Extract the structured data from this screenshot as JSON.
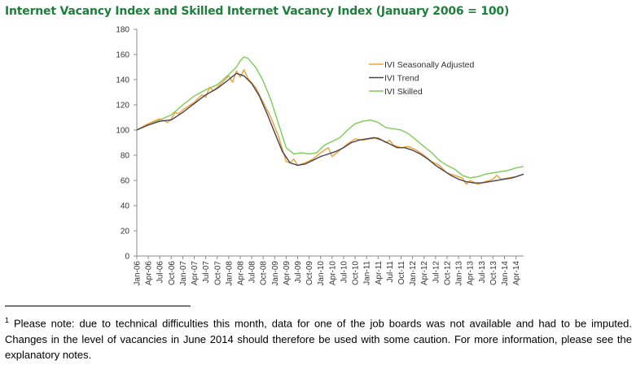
{
  "title": "Internet Vacancy Index and Skilled Internet Vacancy Index (January 2006 = 100)",
  "footnote": {
    "marker": "1",
    "text": " Please note: due to technical difficulties this month, data for one of the job boards was not available and had to be imputed. Changes in the level of vacancies in June 2014 should therefore be used with some caution. For more information, please see the explanatory notes."
  },
  "colors": {
    "seasonal": "#f0a030",
    "trend": "#4a4455",
    "skilled": "#7ccc5a"
  },
  "chart_data": {
    "type": "line",
    "title": "Internet Vacancy Index and Skilled Internet Vacancy Index (January 2006 = 100)",
    "xlabel": "",
    "ylabel": "",
    "ylim": [
      0,
      180
    ],
    "yticks": [
      0,
      20,
      40,
      60,
      80,
      100,
      120,
      140,
      160,
      180
    ],
    "grid": false,
    "legend_position": "top-right",
    "start": "2006-01",
    "n_months": 102,
    "tick_labels": [
      "Jan-06",
      "Apr-06",
      "Jul-06",
      "Oct-06",
      "Jan-07",
      "Apr-07",
      "Jul-07",
      "Oct-07",
      "Jan-08",
      "Apr-08",
      "Jul-08",
      "Oct-08",
      "Jan-09",
      "Apr-09",
      "Jul-09",
      "Oct-09",
      "Jan-10",
      "Apr-10",
      "Jul-10",
      "Oct-10",
      "Jan-11",
      "Apr-11",
      "Jul-11",
      "Oct-11",
      "Jan-12",
      "Apr-12",
      "Jul-12",
      "Oct-12",
      "Jan-13",
      "Apr-13",
      "Jul-13",
      "Oct-13",
      "Jan-14",
      "Apr-14"
    ],
    "series": [
      {
        "name": "IVI Seasonally Adjusted",
        "color": "#f0a030",
        "keyframes": [
          [
            0,
            100
          ],
          [
            3,
            105
          ],
          [
            6,
            109
          ],
          [
            8,
            106
          ],
          [
            9,
            109
          ],
          [
            10,
            114
          ],
          [
            11,
            113
          ],
          [
            12,
            116
          ],
          [
            15,
            122
          ],
          [
            17,
            128
          ],
          [
            18,
            126
          ],
          [
            19,
            134
          ],
          [
            20,
            131
          ],
          [
            22,
            137
          ],
          [
            24,
            143
          ],
          [
            25,
            138
          ],
          [
            26,
            147
          ],
          [
            27,
            142
          ],
          [
            28,
            148
          ],
          [
            29,
            141
          ],
          [
            31,
            134
          ],
          [
            33,
            122
          ],
          [
            35,
            110
          ],
          [
            37,
            95
          ],
          [
            39,
            75
          ],
          [
            40,
            74
          ],
          [
            41,
            77
          ],
          [
            42,
            72
          ],
          [
            44,
            74
          ],
          [
            46,
            77
          ],
          [
            48,
            82
          ],
          [
            50,
            86
          ],
          [
            51,
            79
          ],
          [
            53,
            84
          ],
          [
            55,
            89
          ],
          [
            57,
            93
          ],
          [
            59,
            92
          ],
          [
            61,
            93
          ],
          [
            63,
            94
          ],
          [
            65,
            90
          ],
          [
            66,
            92
          ],
          [
            67,
            88
          ],
          [
            69,
            86
          ],
          [
            71,
            87
          ],
          [
            73,
            84
          ],
          [
            75,
            80
          ],
          [
            77,
            75
          ],
          [
            79,
            72
          ],
          [
            81,
            66
          ],
          [
            83,
            64
          ],
          [
            85,
            62
          ],
          [
            86,
            57
          ],
          [
            87,
            60
          ],
          [
            89,
            57
          ],
          [
            91,
            59
          ],
          [
            93,
            61
          ],
          [
            94,
            64
          ],
          [
            95,
            61
          ],
          [
            97,
            62
          ],
          [
            99,
            63
          ],
          [
            101,
            65
          ]
        ]
      },
      {
        "name": "IVI Trend",
        "color": "#4a4455",
        "keyframes": [
          [
            0,
            100
          ],
          [
            3,
            104
          ],
          [
            6,
            107
          ],
          [
            9,
            108
          ],
          [
            12,
            114
          ],
          [
            15,
            121
          ],
          [
            18,
            128
          ],
          [
            21,
            133
          ],
          [
            24,
            140
          ],
          [
            26,
            145
          ],
          [
            28,
            143
          ],
          [
            30,
            137
          ],
          [
            32,
            127
          ],
          [
            34,
            113
          ],
          [
            36,
            98
          ],
          [
            38,
            83
          ],
          [
            40,
            74
          ],
          [
            42,
            72
          ],
          [
            44,
            73
          ],
          [
            46,
            76
          ],
          [
            48,
            79
          ],
          [
            50,
            81
          ],
          [
            52,
            83
          ],
          [
            54,
            86
          ],
          [
            56,
            90
          ],
          [
            58,
            92
          ],
          [
            60,
            93
          ],
          [
            62,
            94
          ],
          [
            64,
            92
          ],
          [
            66,
            89
          ],
          [
            68,
            86
          ],
          [
            70,
            86
          ],
          [
            72,
            84
          ],
          [
            74,
            81
          ],
          [
            76,
            77
          ],
          [
            78,
            72
          ],
          [
            80,
            68
          ],
          [
            82,
            64
          ],
          [
            84,
            61
          ],
          [
            86,
            59
          ],
          [
            88,
            58
          ],
          [
            90,
            58
          ],
          [
            92,
            59
          ],
          [
            94,
            60
          ],
          [
            96,
            61
          ],
          [
            98,
            62
          ],
          [
            100,
            64
          ],
          [
            101,
            65
          ]
        ]
      },
      {
        "name": "IVI Skilled",
        "color": "#7ccc5a",
        "keyframes": [
          [
            0,
            100
          ],
          [
            3,
            105
          ],
          [
            6,
            108
          ],
          [
            9,
            112
          ],
          [
            12,
            120
          ],
          [
            15,
            127
          ],
          [
            18,
            132
          ],
          [
            21,
            136
          ],
          [
            24,
            144
          ],
          [
            26,
            150
          ],
          [
            27,
            155
          ],
          [
            28,
            158
          ],
          [
            29,
            157
          ],
          [
            31,
            150
          ],
          [
            33,
            139
          ],
          [
            35,
            124
          ],
          [
            37,
            105
          ],
          [
            39,
            86
          ],
          [
            41,
            81
          ],
          [
            43,
            82
          ],
          [
            45,
            81
          ],
          [
            47,
            82
          ],
          [
            49,
            88
          ],
          [
            51,
            91
          ],
          [
            53,
            94
          ],
          [
            55,
            100
          ],
          [
            57,
            105
          ],
          [
            59,
            107
          ],
          [
            61,
            108
          ],
          [
            63,
            106
          ],
          [
            65,
            102
          ],
          [
            67,
            101
          ],
          [
            69,
            100
          ],
          [
            71,
            97
          ],
          [
            73,
            92
          ],
          [
            75,
            87
          ],
          [
            77,
            82
          ],
          [
            79,
            76
          ],
          [
            81,
            72
          ],
          [
            83,
            69
          ],
          [
            85,
            64
          ],
          [
            87,
            62
          ],
          [
            89,
            63
          ],
          [
            91,
            65
          ],
          [
            93,
            66
          ],
          [
            95,
            67
          ],
          [
            97,
            68
          ],
          [
            99,
            70
          ],
          [
            101,
            71
          ]
        ]
      }
    ]
  }
}
